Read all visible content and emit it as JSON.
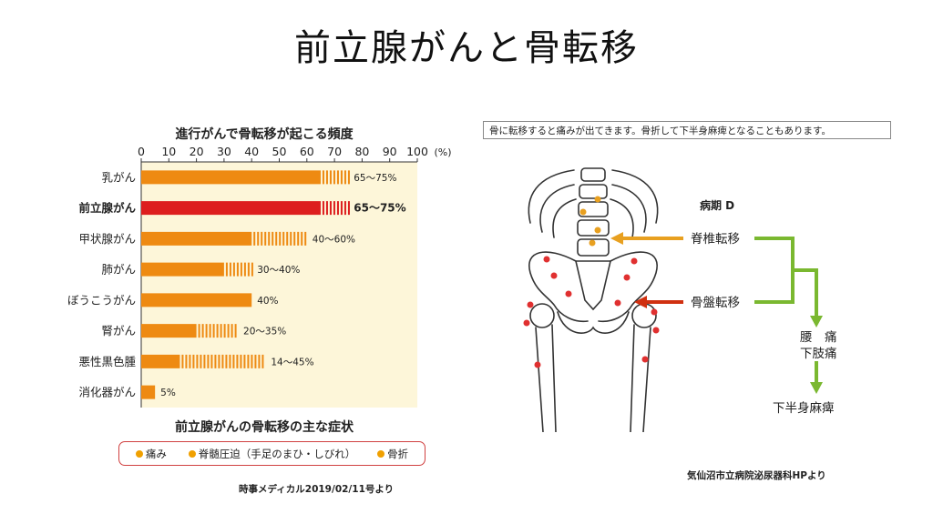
{
  "title": "前立腺がんと骨転移",
  "chart_data": {
    "type": "bar",
    "title": "進行がんで骨転移が起こる頻度",
    "x_ticks": [
      "0",
      "10",
      "20",
      "30",
      "40",
      "50",
      "60",
      "70",
      "80",
      "90",
      "100"
    ],
    "x_unit": "(%)",
    "xlim": [
      0,
      100
    ],
    "categories": [
      "乳がん",
      "前立腺がん",
      "甲状腺がん",
      "肺がん",
      "ぼうこうがん",
      "腎がん",
      "悪性黒色腫",
      "消化器がん"
    ],
    "ranges": [
      [
        65,
        75
      ],
      [
        65,
        75
      ],
      [
        40,
        60
      ],
      [
        30,
        40
      ],
      [
        40,
        40
      ],
      [
        20,
        35
      ],
      [
        14,
        45
      ],
      [
        5,
        5
      ]
    ],
    "labels": [
      "65～75%",
      "65～75%",
      "40～60%",
      "30～40%",
      "40%",
      "20～35%",
      "14～45%",
      "5%"
    ],
    "highlight_index": 1,
    "colors": {
      "bar": "#ee8a12",
      "highlight": "#dd1e1e",
      "plot_bg": "#fdf6d9"
    }
  },
  "symptoms": {
    "title": "前立腺がんの骨転移の主な症状",
    "items": [
      "痛み",
      "脊髄圧迫（手足のまひ・しびれ）",
      "骨折"
    ]
  },
  "source_left": "時事メディカル2019/02/11号より",
  "diagram": {
    "caption": "骨に転移すると痛みが出てきます。骨折して下半身麻痺となることもあります。",
    "stage": "病期 D",
    "spine_label": "脊椎転移",
    "pelvis_label": "骨盤転移",
    "symptom1": "腰　痛",
    "symptom2": "下肢痛",
    "symptom3": "下半身麻痺",
    "colors": {
      "spine_arrow": "#e8a020",
      "pelvis_arrow": "#d03010",
      "flow": "#7ab830",
      "lesion": "#e03030"
    }
  },
  "source_right": "気仙沼市立病院泌尿器科HPより"
}
